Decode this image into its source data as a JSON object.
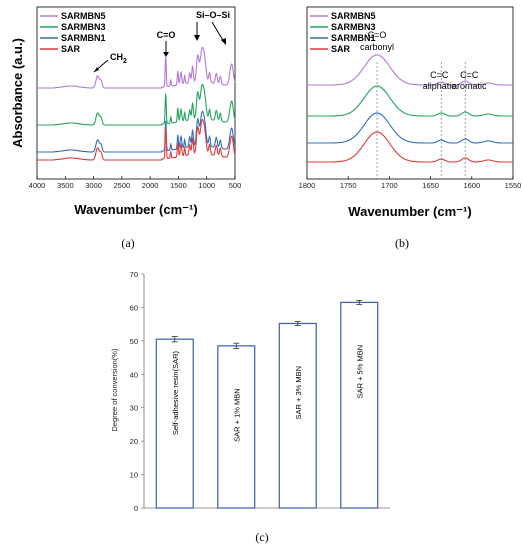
{
  "panel_labels": [
    "(a)",
    "(b)",
    "(c)"
  ],
  "chart_data": [
    {
      "type": "line",
      "panel": "a",
      "xlabel": "Wavenumber (cm⁻¹)",
      "ylabel": "Absorbance (a.u.)",
      "xlim": [
        4000,
        500
      ],
      "x_ticks": [
        "4000",
        "3500",
        "3000",
        "2500",
        "2000",
        "1500",
        "1000",
        "500"
      ],
      "x_tick_values": [
        4000,
        3500,
        3000,
        2500,
        2000,
        1500,
        1000,
        500
      ],
      "legend": [
        "SARMBN5",
        "SARMBN3",
        "SARMBN1",
        "SAR"
      ],
      "series": [
        {
          "name": "SARMBN5",
          "color": "#b37ad9",
          "offset": 3
        },
        {
          "name": "SARMBN3",
          "color": "#27a35f",
          "offset": 2
        },
        {
          "name": "SARMBN1",
          "color": "#2f6fb8",
          "offset": 1
        },
        {
          "name": "SAR",
          "color": "#e03a3a",
          "offset": 0
        }
      ],
      "annotations": [
        {
          "text": "CH",
          "sub": "2",
          "x": 2920
        },
        {
          "text": "C=O",
          "x": 1720
        },
        {
          "text": "Si–O–Si",
          "x": 1030
        },
        {
          "text": "",
          "x": 560
        }
      ]
    },
    {
      "type": "line",
      "panel": "b",
      "xlabel": "Wavenumber (cm⁻¹)",
      "ylabel": "",
      "xlim": [
        1800,
        1550
      ],
      "x_ticks": [
        "1800",
        "1750",
        "1700",
        "1650",
        "1600",
        "1550"
      ],
      "x_tick_values": [
        1800,
        1750,
        1700,
        1650,
        1600,
        1550
      ],
      "legend": [
        "SARMBN5",
        "SARMBN3",
        "SARMBN1",
        "SAR"
      ],
      "series": [
        {
          "name": "SARMBN5",
          "color": "#b37ad9"
        },
        {
          "name": "SARMBN3",
          "color": "#27a35f"
        },
        {
          "name": "SARMBN1",
          "color": "#2f6fb8"
        },
        {
          "name": "SAR",
          "color": "#e03a3a"
        }
      ],
      "dashed_lines_x": [
        1715,
        1637,
        1608
      ],
      "annotations": [
        {
          "line1": "C=O",
          "line2": "carbonyl",
          "x": 1715
        },
        {
          "line1": "C=C",
          "line2": "aliphatic",
          "x": 1637
        },
        {
          "line1": "C=C",
          "line2": "aromatic",
          "x": 1608
        }
      ]
    },
    {
      "type": "bar",
      "panel": "c",
      "ylabel": "Degree of conversion(%)",
      "ylim": [
        0,
        70
      ],
      "y_ticks": [
        "0",
        "10",
        "20",
        "30",
        "40",
        "50",
        "60",
        "70"
      ],
      "y_tick_values": [
        0,
        10,
        20,
        30,
        40,
        50,
        60,
        70
      ],
      "categories": [
        "Self-adhesive resin(SAR)",
        "SAR + 1% MBN",
        "SAR + 3% MBN",
        "SAR + 5% MBN"
      ],
      "values": [
        50.5,
        48.5,
        55.2,
        61.5
      ],
      "errors": [
        0.8,
        0.8,
        0.6,
        0.6
      ],
      "bar_color": "#3a5fb0"
    }
  ]
}
